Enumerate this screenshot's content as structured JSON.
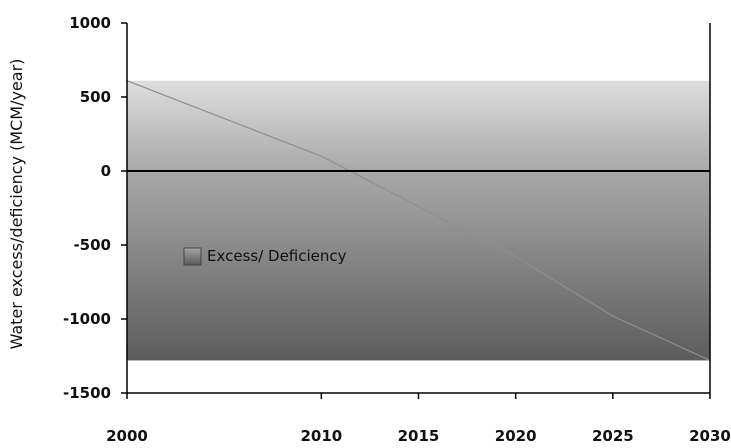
{
  "chart_data": {
    "type": "area",
    "title": "",
    "xlabel": "",
    "ylabel": "Water excess/deficiency (MCM/year)",
    "xlim": [
      2000,
      2030
    ],
    "ylim": [
      -1500,
      1000
    ],
    "x_ticks": [
      "2000",
      "2010",
      "2015",
      "2020",
      "2025",
      "2030"
    ],
    "y_ticks": [
      "1000",
      "500",
      "0",
      "-500",
      "-1000",
      "-1500"
    ],
    "series": [
      {
        "name": "Excess/ Deficiency",
        "x": [
          2000,
          2010,
          2015,
          2020,
          2025,
          2030
        ],
        "y": [
          610,
          100,
          -240,
          -580,
          -980,
          -1280
        ]
      }
    ],
    "legend_position": "center-left",
    "grid": false,
    "colors": {
      "area_light": "#dedede",
      "area_mid": "#a9a9a9",
      "area_dark": "#5c5c5c",
      "zero_line": "#000000",
      "series_edge": "#8f8f8f"
    }
  }
}
